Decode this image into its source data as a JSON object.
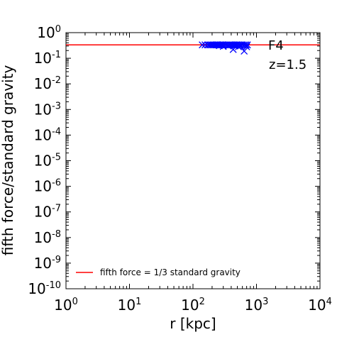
{
  "chart_data": {
    "type": "scatter",
    "title": "",
    "xlabel": "r [kpc]",
    "ylabel": "fifth force/standard gravity",
    "x_scale": "log",
    "y_scale": "log",
    "xlim": [
      1,
      10000
    ],
    "ylim": [
      1e-10,
      1
    ],
    "x_ticks": [
      {
        "value": 1,
        "base": "10",
        "exp": "0"
      },
      {
        "value": 10,
        "base": "10",
        "exp": "1"
      },
      {
        "value": 100,
        "base": "10",
        "exp": "2"
      },
      {
        "value": 1000,
        "base": "10",
        "exp": "3"
      },
      {
        "value": 10000,
        "base": "10",
        "exp": "4"
      }
    ],
    "y_ticks": [
      {
        "value": 1,
        "base": "10",
        "exp": "0"
      },
      {
        "value": 0.1,
        "base": "10",
        "exp": "-1"
      },
      {
        "value": 0.01,
        "base": "10",
        "exp": "-2"
      },
      {
        "value": 0.001,
        "base": "10",
        "exp": "-3"
      },
      {
        "value": 0.0001,
        "base": "10",
        "exp": "-4"
      },
      {
        "value": 1e-05,
        "base": "10",
        "exp": "-5"
      },
      {
        "value": 1e-06,
        "base": "10",
        "exp": "-6"
      },
      {
        "value": 1e-07,
        "base": "10",
        "exp": "-7"
      },
      {
        "value": 1e-08,
        "base": "10",
        "exp": "-8"
      },
      {
        "value": 1e-09,
        "base": "10",
        "exp": "-9"
      },
      {
        "value": 1e-10,
        "base": "10",
        "exp": "-10"
      }
    ],
    "annotations": [
      "F4",
      "z=1.5"
    ],
    "reference_line": {
      "y": 0.3333,
      "label": "fifth force = 1/3 standard gravity",
      "color": "#ff0000"
    },
    "legend_placement": "lower-left",
    "series": [
      {
        "marker": "x",
        "color": "#0000ff",
        "points": [
          [
            140,
            0.333
          ],
          [
            155,
            0.333
          ],
          [
            170,
            0.333
          ],
          [
            180,
            0.333
          ],
          [
            190,
            0.333
          ],
          [
            200,
            0.333
          ],
          [
            210,
            0.333
          ],
          [
            220,
            0.333
          ],
          [
            230,
            0.333
          ],
          [
            240,
            0.333
          ],
          [
            250,
            0.333
          ],
          [
            260,
            0.333
          ],
          [
            270,
            0.333
          ],
          [
            280,
            0.333
          ],
          [
            290,
            0.333
          ],
          [
            300,
            0.333
          ],
          [
            320,
            0.333
          ],
          [
            340,
            0.333
          ],
          [
            360,
            0.333
          ],
          [
            380,
            0.333
          ],
          [
            400,
            0.333
          ],
          [
            420,
            0.333
          ],
          [
            440,
            0.333
          ],
          [
            460,
            0.333
          ],
          [
            480,
            0.333
          ],
          [
            500,
            0.333
          ],
          [
            530,
            0.333
          ],
          [
            560,
            0.333
          ],
          [
            600,
            0.333
          ],
          [
            640,
            0.333
          ],
          [
            680,
            0.333
          ],
          [
            720,
            0.333
          ],
          [
            430,
            0.22
          ],
          [
            640,
            0.19
          ],
          [
            520,
            0.28
          ],
          [
            300,
            0.29
          ],
          [
            360,
            0.3
          ],
          [
            560,
            0.3
          ],
          [
            700,
            0.28
          ],
          [
            260,
            0.31
          ]
        ]
      }
    ],
    "grid": false
  }
}
